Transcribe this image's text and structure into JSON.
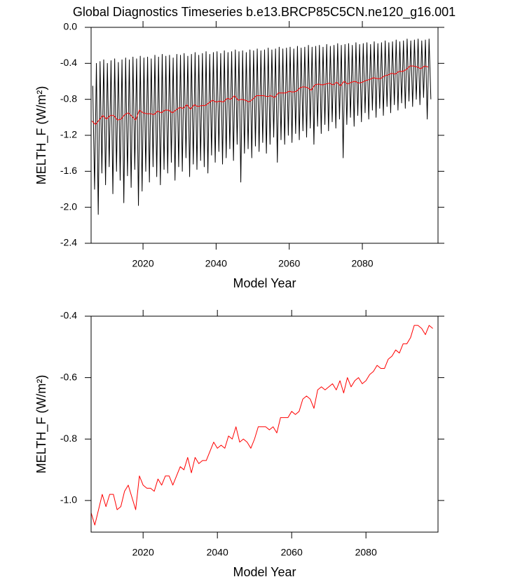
{
  "chart_data": [
    {
      "type": "line",
      "title": "Global Diagnostics Timeseries b.e13.BRCP85C5CN.ne120_g16.001",
      "x_label": "Model Year",
      "y_label": "MELTH_F (W/m²)",
      "xlim": [
        2005.8,
        2100.7
      ],
      "xticks": [
        2020,
        2040,
        2060,
        2080
      ],
      "ylim": [
        -2.4,
        0
      ],
      "yticks": [
        {
          "value": 0,
          "label": "0.0"
        },
        -0.4,
        -0.8,
        -1.2,
        -1.6,
        {
          "value": -2,
          "label": "-2.0"
        },
        -2.4
      ],
      "series": [
        {
          "color": "#000000",
          "x": [
            2006.25,
            2006.75,
            2007.25,
            2007.75,
            2008.25,
            2008.75,
            2009.25,
            2009.75,
            2010.25,
            2010.75,
            2011.25,
            2011.75,
            2012.25,
            2012.75,
            2013.25,
            2013.75,
            2014.25,
            2014.75,
            2015.25,
            2015.75,
            2016.25,
            2016.75,
            2017.25,
            2017.75,
            2018.25,
            2018.75,
            2019.25,
            2019.75,
            2020.25,
            2020.75,
            2021.25,
            2021.75,
            2022.25,
            2022.75,
            2023.25,
            2023.75,
            2024.25,
            2024.75,
            2025.25,
            2025.75,
            2026.25,
            2026.75,
            2027.25,
            2027.75,
            2028.25,
            2028.75,
            2029.25,
            2029.75,
            2030.25,
            2030.75,
            2031.25,
            2031.75,
            2032.25,
            2032.75,
            2033.25,
            2033.75,
            2034.25,
            2034.75,
            2035.25,
            2035.75,
            2036.25,
            2036.75,
            2037.25,
            2037.75,
            2038.25,
            2038.75,
            2039.25,
            2039.75,
            2040.25,
            2040.75,
            2041.25,
            2041.75,
            2042.25,
            2042.75,
            2043.25,
            2043.75,
            2044.25,
            2044.75,
            2045.25,
            2045.75,
            2046.25,
            2046.75,
            2047.25,
            2047.75,
            2048.25,
            2048.75,
            2049.25,
            2049.75,
            2050.25,
            2050.75,
            2051.25,
            2051.75,
            2052.25,
            2052.75,
            2053.25,
            2053.75,
            2054.25,
            2054.75,
            2055.25,
            2055.75,
            2056.25,
            2056.75,
            2057.25,
            2057.75,
            2058.25,
            2058.75,
            2059.25,
            2059.75,
            2060.25,
            2060.75,
            2061.25,
            2061.75,
            2062.25,
            2062.75,
            2063.25,
            2063.75,
            2064.25,
            2064.75,
            2065.25,
            2065.75,
            2066.25,
            2066.75,
            2067.25,
            2067.75,
            2068.25,
            2068.75,
            2069.25,
            2069.75,
            2070.25,
            2070.75,
            2071.25,
            2071.75,
            2072.25,
            2072.75,
            2073.25,
            2073.75,
            2074.25,
            2074.75,
            2075.25,
            2075.75,
            2076.25,
            2076.75,
            2077.25,
            2077.75,
            2078.25,
            2078.75,
            2079.25,
            2079.75,
            2080.25,
            2080.75,
            2081.25,
            2081.75,
            2082.25,
            2082.75,
            2083.25,
            2083.75,
            2084.25,
            2084.75,
            2085.25,
            2085.75,
            2086.25,
            2086.75,
            2087.25,
            2087.75,
            2088.25,
            2088.75,
            2089.25,
            2089.75,
            2090.25,
            2090.75,
            2091.25,
            2091.75,
            2092.25,
            2092.75,
            2093.25,
            2093.75,
            2094.25,
            2094.75,
            2095.25,
            2095.75,
            2096.25,
            2096.75,
            2097.25,
            2097.75,
            2098.25,
            2098.75
          ],
          "values": [
            -0.65,
            -1.8,
            -0.4,
            -2.08,
            -0.38,
            -1.62,
            -0.36,
            -1.75,
            -0.4,
            -1.55,
            -0.37,
            -1.85,
            -0.35,
            -1.6,
            -0.39,
            -1.7,
            -0.36,
            -1.95,
            -0.34,
            -1.65,
            -0.36,
            -1.78,
            -0.33,
            -1.58,
            -0.35,
            -1.98,
            -0.32,
            -1.82,
            -0.34,
            -1.6,
            -0.33,
            -1.72,
            -0.35,
            -1.55,
            -0.31,
            -1.66,
            -0.33,
            -1.75,
            -0.3,
            -1.58,
            -0.32,
            -1.62,
            -0.31,
            -1.5,
            -0.34,
            -1.7,
            -0.3,
            -1.55,
            -0.31,
            -1.6,
            -0.29,
            -1.45,
            -0.32,
            -1.66,
            -0.3,
            -1.52,
            -0.28,
            -1.58,
            -0.31,
            -1.48,
            -0.29,
            -1.55,
            -0.27,
            -1.62,
            -0.3,
            -1.42,
            -0.28,
            -1.5,
            -0.27,
            -1.38,
            -0.29,
            -1.52,
            -0.26,
            -1.45,
            -0.28,
            -1.35,
            -0.27,
            -1.48,
            -0.25,
            -1.3,
            -0.27,
            -1.72,
            -0.26,
            -1.4,
            -0.28,
            -1.35,
            -0.25,
            -1.45,
            -0.26,
            -1.32,
            -0.24,
            -1.38,
            -0.26,
            -1.28,
            -0.25,
            -1.4,
            -0.23,
            -1.3,
            -0.25,
            -1.22,
            -0.24,
            -1.5,
            -0.22,
            -1.25,
            -0.24,
            -1.3,
            -0.23,
            -1.2,
            -0.22,
            -1.28,
            -0.24,
            -1.18,
            -0.21,
            -1.25,
            -0.23,
            -1.15,
            -0.22,
            -1.22,
            -0.2,
            -1.12,
            -0.22,
            -1.3,
            -0.21,
            -1.1,
            -0.2,
            -1.18,
            -0.22,
            -1.08,
            -0.19,
            -1.15,
            -0.21,
            -1.05,
            -0.2,
            -1.12,
            -0.18,
            -1.02,
            -0.2,
            -1.45,
            -0.19,
            -1.08,
            -0.18,
            -1.0,
            -0.2,
            -1.1,
            -0.17,
            -0.98,
            -0.19,
            -1.05,
            -0.18,
            -0.95,
            -0.17,
            -1.02,
            -0.19,
            -0.92,
            -0.16,
            -1.0,
            -0.18,
            -0.9,
            -0.17,
            -0.98,
            -0.15,
            -0.88,
            -0.17,
            -0.95,
            -0.16,
            -0.86,
            -0.14,
            -0.92,
            -0.16,
            -0.84,
            -0.15,
            -0.9,
            -0.13,
            -0.82,
            -0.15,
            -0.88,
            -0.14,
            -0.8,
            -0.13,
            -0.86,
            -0.15,
            -0.78,
            -0.14,
            -1.02,
            -0.13,
            -0.8
          ]
        },
        {
          "color": "#ff0000",
          "x": [
            2006,
            2007,
            2008,
            2009,
            2010,
            2011,
            2012,
            2013,
            2014,
            2015,
            2016,
            2017,
            2018,
            2019,
            2020,
            2021,
            2022,
            2023,
            2024,
            2025,
            2026,
            2027,
            2028,
            2029,
            2030,
            2031,
            2032,
            2033,
            2034,
            2035,
            2036,
            2037,
            2038,
            2039,
            2040,
            2041,
            2042,
            2043,
            2044,
            2045,
            2046,
            2047,
            2048,
            2049,
            2050,
            2051,
            2052,
            2053,
            2054,
            2055,
            2056,
            2057,
            2058,
            2059,
            2060,
            2061,
            2062,
            2063,
            2064,
            2065,
            2066,
            2067,
            2068,
            2069,
            2070,
            2071,
            2072,
            2073,
            2074,
            2075,
            2076,
            2077,
            2078,
            2079,
            2080,
            2081,
            2082,
            2083,
            2084,
            2085,
            2086,
            2087,
            2088,
            2089,
            2090,
            2091,
            2092,
            2093,
            2094,
            2095,
            2096,
            2097,
            2098
          ],
          "values": [
            -1.04,
            -1.08,
            -1.03,
            -0.98,
            -1.02,
            -0.98,
            -0.98,
            -1.03,
            -1.02,
            -0.97,
            -0.95,
            -0.99,
            -1.03,
            -0.92,
            -0.95,
            -0.96,
            -0.96,
            -0.97,
            -0.93,
            -0.95,
            -0.92,
            -0.92,
            -0.95,
            -0.92,
            -0.89,
            -0.9,
            -0.86,
            -0.91,
            -0.86,
            -0.88,
            -0.87,
            -0.87,
            -0.84,
            -0.81,
            -0.83,
            -0.82,
            -0.83,
            -0.79,
            -0.8,
            -0.76,
            -0.81,
            -0.8,
            -0.81,
            -0.83,
            -0.8,
            -0.76,
            -0.76,
            -0.76,
            -0.77,
            -0.76,
            -0.78,
            -0.73,
            -0.73,
            -0.73,
            -0.71,
            -0.72,
            -0.71,
            -0.67,
            -0.66,
            -0.67,
            -0.7,
            -0.64,
            -0.63,
            -0.64,
            -0.63,
            -0.62,
            -0.64,
            -0.61,
            -0.65,
            -0.6,
            -0.63,
            -0.61,
            -0.6,
            -0.62,
            -0.61,
            -0.59,
            -0.58,
            -0.56,
            -0.57,
            -0.57,
            -0.54,
            -0.53,
            -0.51,
            -0.52,
            -0.49,
            -0.49,
            -0.47,
            -0.43,
            -0.43,
            -0.44,
            -0.46,
            -0.43,
            -0.44
          ]
        }
      ]
    },
    {
      "type": "line",
      "x_label": "Model Year",
      "y_label": "MELTH_F (W/m²)",
      "xlim": [
        2006,
        2099.4
      ],
      "xticks": [
        2020,
        2040,
        2060,
        2080
      ],
      "ylim": [
        -1.103,
        -0.4
      ],
      "yticks": [
        -0.4,
        -0.6,
        -0.8,
        {
          "value": -1,
          "label": "-1.0"
        }
      ],
      "series": [
        {
          "color": "#ff0000",
          "x": [
            2006,
            2007,
            2008,
            2009,
            2010,
            2011,
            2012,
            2013,
            2014,
            2015,
            2016,
            2017,
            2018,
            2019,
            2020,
            2021,
            2022,
            2023,
            2024,
            2025,
            2026,
            2027,
            2028,
            2029,
            2030,
            2031,
            2032,
            2033,
            2034,
            2035,
            2036,
            2037,
            2038,
            2039,
            2040,
            2041,
            2042,
            2043,
            2044,
            2045,
            2046,
            2047,
            2048,
            2049,
            2050,
            2051,
            2052,
            2053,
            2054,
            2055,
            2056,
            2057,
            2058,
            2059,
            2060,
            2061,
            2062,
            2063,
            2064,
            2065,
            2066,
            2067,
            2068,
            2069,
            2070,
            2071,
            2072,
            2073,
            2074,
            2075,
            2076,
            2077,
            2078,
            2079,
            2080,
            2081,
            2082,
            2083,
            2084,
            2085,
            2086,
            2087,
            2088,
            2089,
            2090,
            2091,
            2092,
            2093,
            2094,
            2095,
            2096,
            2097,
            2098
          ],
          "values": [
            -1.04,
            -1.08,
            -1.03,
            -0.98,
            -1.02,
            -0.98,
            -0.98,
            -1.03,
            -1.02,
            -0.97,
            -0.95,
            -0.99,
            -1.03,
            -0.92,
            -0.95,
            -0.96,
            -0.96,
            -0.97,
            -0.93,
            -0.95,
            -0.92,
            -0.92,
            -0.95,
            -0.92,
            -0.89,
            -0.9,
            -0.86,
            -0.91,
            -0.86,
            -0.88,
            -0.87,
            -0.87,
            -0.84,
            -0.81,
            -0.83,
            -0.82,
            -0.83,
            -0.79,
            -0.8,
            -0.76,
            -0.81,
            -0.8,
            -0.81,
            -0.83,
            -0.8,
            -0.76,
            -0.76,
            -0.76,
            -0.77,
            -0.76,
            -0.78,
            -0.73,
            -0.73,
            -0.73,
            -0.71,
            -0.72,
            -0.71,
            -0.67,
            -0.66,
            -0.67,
            -0.7,
            -0.64,
            -0.63,
            -0.64,
            -0.63,
            -0.62,
            -0.64,
            -0.61,
            -0.65,
            -0.6,
            -0.63,
            -0.61,
            -0.6,
            -0.62,
            -0.61,
            -0.59,
            -0.58,
            -0.56,
            -0.57,
            -0.57,
            -0.54,
            -0.53,
            -0.51,
            -0.52,
            -0.49,
            -0.49,
            -0.47,
            -0.43,
            -0.43,
            -0.44,
            -0.46,
            -0.43,
            -0.44
          ]
        }
      ]
    }
  ]
}
